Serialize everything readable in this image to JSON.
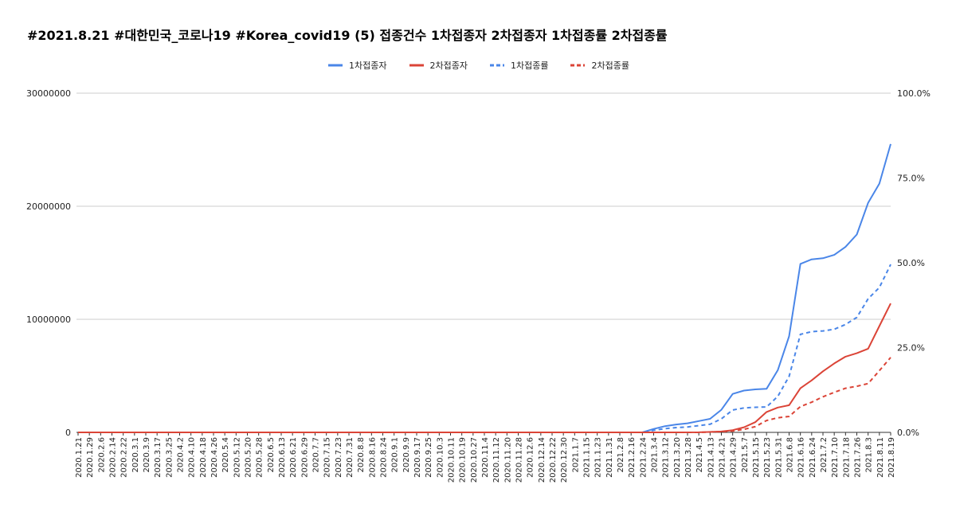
{
  "chart_data": {
    "type": "line",
    "title": "#2021.8.21 #대한민국_코로나19 #Korea_covid19 (5) 접종건수 1차접종자 2차접종자 1차접종률 2차접종률",
    "legend_position": "top-center",
    "grid": true,
    "x_tick_labels": [
      "2020.1.21",
      "2020.1.29",
      "2020.2.6",
      "2020.2.14",
      "2020.2.22",
      "2020.3.1",
      "2020.3.9",
      "2020.3.17",
      "2020.3.25",
      "2020.4.2",
      "2020.4.10",
      "2020.4.18",
      "2020.4.26",
      "2020.5.4",
      "2020.5.12",
      "2020.5.20",
      "2020.5.28",
      "2020.6.5",
      "2020.6.13",
      "2020.6.21",
      "2020.6.29",
      "2020.7.7",
      "2020.7.15",
      "2020.7.23",
      "2020.7.31",
      "2020.8.8",
      "2020.8.16",
      "2020.8.24",
      "2020.9.1",
      "2020.9.9",
      "2020.9.17",
      "2020.9.25",
      "2020.10.3",
      "2020.10.11",
      "2020.10.19",
      "2020.10.27",
      "2020.11.4",
      "2020.11.12",
      "2020.11.20",
      "2020.11.28",
      "2020.12.6",
      "2020.12.14",
      "2020.12.22",
      "2020.12.30",
      "2021.1.7",
      "2021.1.15",
      "2021.1.23",
      "2021.1.31",
      "2021.2.8",
      "2021.2.16",
      "2021.2.24",
      "2021.3.4",
      "2021.3.12",
      "2021.3.20",
      "2021.3.28",
      "2021.4.5",
      "2021.4.13",
      "2021.4.21",
      "2021.4.29",
      "2021.5.7",
      "2021.5.15",
      "2021.5.23",
      "2021.5.31",
      "2021.6.8",
      "2021.6.16",
      "2021.6.24",
      "2021.7.2",
      "2021.7.10",
      "2021.7.18",
      "2021.7.26",
      "2021.8.3",
      "2021.8.11",
      "2021.8.19"
    ],
    "y_left": {
      "ticks": [
        "0",
        "10000000",
        "20000000",
        "30000000"
      ],
      "range": [
        0,
        30000000
      ]
    },
    "y_right": {
      "ticks": [
        "0.0%",
        "25.0%",
        "50.0%",
        "75.0%",
        "100.0%"
      ],
      "range": [
        0,
        100
      ]
    },
    "series": [
      {
        "name": "1차접종자",
        "axis": "left",
        "style": "solid",
        "color": "#4a86e8",
        "points": [
          [
            "2021.2.24",
            0
          ],
          [
            "2021.3.4",
            300000
          ],
          [
            "2021.3.12",
            550000
          ],
          [
            "2021.3.20",
            700000
          ],
          [
            "2021.3.28",
            800000
          ],
          [
            "2021.4.5",
            1000000
          ],
          [
            "2021.4.13",
            1200000
          ],
          [
            "2021.4.21",
            2000000
          ],
          [
            "2021.4.29",
            3400000
          ],
          [
            "2021.5.7",
            3700000
          ],
          [
            "2021.5.15",
            3800000
          ],
          [
            "2021.5.23",
            3850000
          ],
          [
            "2021.5.31",
            5500000
          ],
          [
            "2021.6.8",
            8500000
          ],
          [
            "2021.6.16",
            14900000
          ],
          [
            "2021.6.24",
            15300000
          ],
          [
            "2021.7.2",
            15400000
          ],
          [
            "2021.7.10",
            15700000
          ],
          [
            "2021.7.18",
            16400000
          ],
          [
            "2021.7.26",
            17500000
          ],
          [
            "2021.8.3",
            20300000
          ],
          [
            "2021.8.11",
            22000000
          ],
          [
            "2021.8.19",
            25500000
          ]
        ]
      },
      {
        "name": "2차접종자",
        "axis": "left",
        "style": "solid",
        "color": "#db4437",
        "points": [
          [
            "2021.2.24",
            0
          ],
          [
            "2021.3.20",
            0
          ],
          [
            "2021.4.5",
            10000
          ],
          [
            "2021.4.21",
            80000
          ],
          [
            "2021.4.29",
            200000
          ],
          [
            "2021.5.7",
            450000
          ],
          [
            "2021.5.15",
            900000
          ],
          [
            "2021.5.23",
            1800000
          ],
          [
            "2021.5.31",
            2200000
          ],
          [
            "2021.6.8",
            2400000
          ],
          [
            "2021.6.16",
            3900000
          ],
          [
            "2021.6.24",
            4600000
          ],
          [
            "2021.7.2",
            5400000
          ],
          [
            "2021.7.10",
            6100000
          ],
          [
            "2021.7.18",
            6700000
          ],
          [
            "2021.7.26",
            7000000
          ],
          [
            "2021.8.3",
            7400000
          ],
          [
            "2021.8.11",
            9400000
          ],
          [
            "2021.8.19",
            11400000
          ]
        ]
      },
      {
        "name": "1차접종률",
        "axis": "right",
        "style": "dashed",
        "color": "#4a86e8",
        "points": [
          [
            "2021.2.24",
            0
          ],
          [
            "2021.3.4",
            0.6
          ],
          [
            "2021.3.12",
            1.1
          ],
          [
            "2021.3.20",
            1.4
          ],
          [
            "2021.3.28",
            1.6
          ],
          [
            "2021.4.5",
            2.0
          ],
          [
            "2021.4.13",
            2.4
          ],
          [
            "2021.4.21",
            4.0
          ],
          [
            "2021.4.29",
            6.6
          ],
          [
            "2021.5.7",
            7.2
          ],
          [
            "2021.5.15",
            7.4
          ],
          [
            "2021.5.23",
            7.5
          ],
          [
            "2021.5.31",
            10.6
          ],
          [
            "2021.6.8",
            16.5
          ],
          [
            "2021.6.16",
            28.9
          ],
          [
            "2021.6.24",
            29.7
          ],
          [
            "2021.7.2",
            29.9
          ],
          [
            "2021.7.10",
            30.4
          ],
          [
            "2021.7.18",
            31.8
          ],
          [
            "2021.7.26",
            33.9
          ],
          [
            "2021.8.3",
            39.4
          ],
          [
            "2021.8.11",
            42.7
          ],
          [
            "2021.8.19",
            49.5
          ]
        ]
      },
      {
        "name": "2차접종률",
        "axis": "right",
        "style": "dashed",
        "color": "#db4437",
        "points": [
          [
            "2021.2.24",
            0
          ],
          [
            "2021.3.20",
            0
          ],
          [
            "2021.4.5",
            0.0
          ],
          [
            "2021.4.21",
            0.2
          ],
          [
            "2021.4.29",
            0.4
          ],
          [
            "2021.5.7",
            0.9
          ],
          [
            "2021.5.15",
            1.7
          ],
          [
            "2021.5.23",
            3.5
          ],
          [
            "2021.5.31",
            4.3
          ],
          [
            "2021.6.8",
            4.7
          ],
          [
            "2021.6.16",
            7.6
          ],
          [
            "2021.6.24",
            8.9
          ],
          [
            "2021.7.2",
            10.5
          ],
          [
            "2021.7.10",
            11.8
          ],
          [
            "2021.7.18",
            13.0
          ],
          [
            "2021.7.26",
            13.6
          ],
          [
            "2021.8.3",
            14.4
          ],
          [
            "2021.8.11",
            18.2
          ],
          [
            "2021.8.19",
            22.1
          ]
        ]
      }
    ]
  }
}
